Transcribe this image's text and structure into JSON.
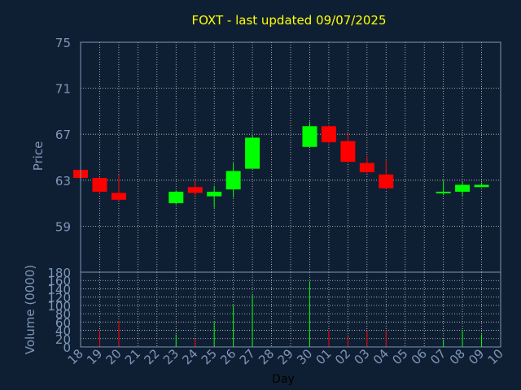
{
  "chart_data": [
    {
      "type": "candlestick",
      "title": "FOXT - last updated 09/07/2025",
      "ylabel": "Price",
      "ylim": [
        55,
        75
      ],
      "yticks": [
        75,
        71,
        67,
        63,
        59
      ],
      "grid": true,
      "colors": {
        "up": "#00ff00",
        "down": "#ff0000",
        "background": "#0f1f33",
        "plot_border": "#7d96b8",
        "grid": "#cccccc",
        "title": "#ffff00",
        "axis_text": "#7d96b8"
      },
      "categories": [
        "18",
        "19",
        "20",
        "21",
        "22",
        "23",
        "24",
        "25",
        "26",
        "27",
        "28",
        "29",
        "30",
        "01",
        "02",
        "03",
        "04",
        "05",
        "06",
        "07",
        "08",
        "09",
        "10"
      ],
      "candles": [
        {
          "x": "18",
          "open": 63.9,
          "high": 63.9,
          "low": 63.1,
          "close": 63.2
        },
        {
          "x": "19",
          "open": 63.2,
          "high": 63.3,
          "low": 61.8,
          "close": 62.0
        },
        {
          "x": "20",
          "open": 61.9,
          "high": 63.5,
          "low": 61.2,
          "close": 61.3
        },
        {
          "x": "23",
          "open": 61.0,
          "high": 62.1,
          "low": 60.9,
          "close": 62.0
        },
        {
          "x": "24",
          "open": 62.4,
          "high": 62.9,
          "low": 61.6,
          "close": 61.9
        },
        {
          "x": "25",
          "open": 61.6,
          "high": 62.5,
          "low": 60.6,
          "close": 62.0
        },
        {
          "x": "26",
          "open": 62.2,
          "high": 64.5,
          "low": 61.5,
          "close": 63.8
        },
        {
          "x": "27",
          "open": 64.0,
          "high": 66.9,
          "low": 64.0,
          "close": 66.7
        },
        {
          "x": "30",
          "open": 65.9,
          "high": 68.1,
          "low": 65.9,
          "close": 67.7
        },
        {
          "x": "01",
          "open": 67.7,
          "high": 67.8,
          "low": 66.2,
          "close": 66.3
        },
        {
          "x": "02",
          "open": 66.4,
          "high": 67.1,
          "low": 64.5,
          "close": 64.6
        },
        {
          "x": "03",
          "open": 64.5,
          "high": 65.1,
          "low": 63.6,
          "close": 63.7
        },
        {
          "x": "04",
          "open": 63.5,
          "high": 64.8,
          "low": 62.2,
          "close": 62.3
        },
        {
          "x": "07",
          "open": 61.9,
          "high": 63.0,
          "low": 61.7,
          "close": 62.0
        },
        {
          "x": "08",
          "open": 62.0,
          "high": 62.9,
          "low": 61.6,
          "close": 62.6
        },
        {
          "x": "09",
          "open": 62.4,
          "high": 62.8,
          "low": 62.4,
          "close": 62.6
        }
      ]
    },
    {
      "type": "bar",
      "xlabel": "Day",
      "ylabel": "Volume (0000)",
      "ylim": [
        0,
        180
      ],
      "yticks": [
        0,
        20,
        40,
        60,
        80,
        100,
        120,
        140,
        160,
        180
      ],
      "categories": [
        "18",
        "19",
        "20",
        "21",
        "22",
        "23",
        "24",
        "25",
        "26",
        "27",
        "28",
        "29",
        "30",
        "01",
        "02",
        "03",
        "04",
        "05",
        "06",
        "07",
        "08",
        "09",
        "10"
      ],
      "values": [
        {
          "x": "19",
          "value": 40,
          "color": "down"
        },
        {
          "x": "20",
          "value": 62,
          "color": "down"
        },
        {
          "x": "23",
          "value": 30,
          "color": "up"
        },
        {
          "x": "24",
          "value": 20,
          "color": "down"
        },
        {
          "x": "25",
          "value": 60,
          "color": "up"
        },
        {
          "x": "26",
          "value": 100,
          "color": "up"
        },
        {
          "x": "27",
          "value": 125,
          "color": "up"
        },
        {
          "x": "30",
          "value": 158,
          "color": "up"
        },
        {
          "x": "01",
          "value": 40,
          "color": "down"
        },
        {
          "x": "02",
          "value": 25,
          "color": "down"
        },
        {
          "x": "03",
          "value": 38,
          "color": "down"
        },
        {
          "x": "04",
          "value": 40,
          "color": "down"
        },
        {
          "x": "07",
          "value": 18,
          "color": "up"
        },
        {
          "x": "08",
          "value": 40,
          "color": "up"
        },
        {
          "x": "09",
          "value": 30,
          "color": "up"
        }
      ]
    }
  ]
}
